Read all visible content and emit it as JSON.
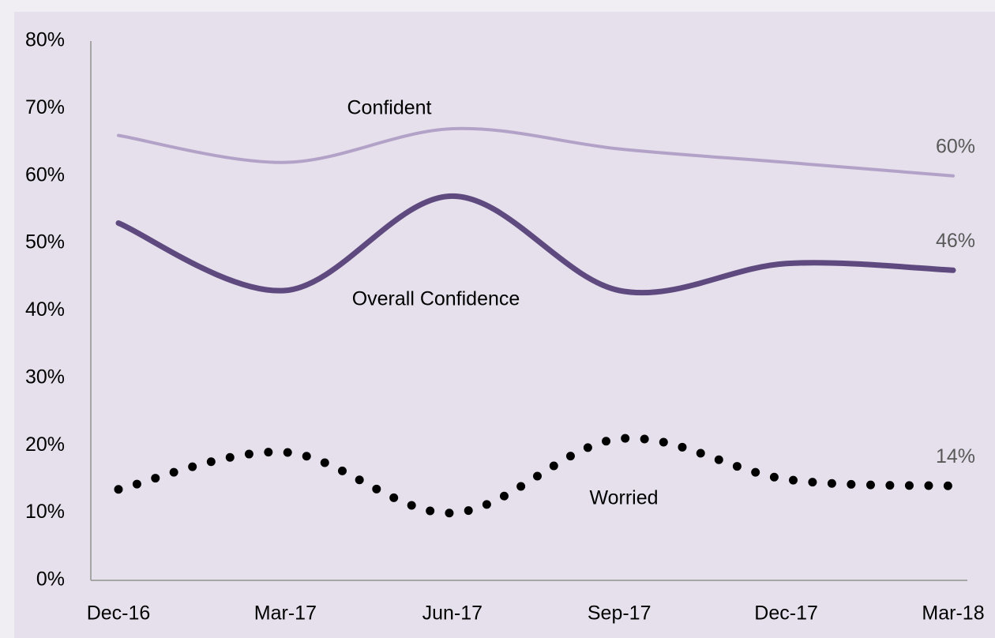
{
  "chart_data": {
    "type": "line",
    "categories": [
      "Dec-16",
      "Mar-17",
      "Jun-17",
      "Sep-17",
      "Dec-17",
      "Mar-18"
    ],
    "series": [
      {
        "name": "Confident",
        "color": "#b3a2c7",
        "style": "solid",
        "values": [
          66,
          62,
          67,
          64,
          62,
          60
        ],
        "value_labels": [
          null,
          null,
          null,
          null,
          null,
          "60%"
        ]
      },
      {
        "name": "Overall Confidence",
        "color": "#5f4a7f",
        "style": "solid",
        "values": [
          53,
          43,
          57,
          43,
          47,
          46
        ],
        "value_labels": [
          null,
          null,
          null,
          null,
          null,
          "46%"
        ]
      },
      {
        "name": "Worried",
        "color": "#000000",
        "style": "dotted",
        "values": [
          13.5,
          19,
          10,
          21,
          15,
          14
        ],
        "value_labels": [
          null,
          null,
          null,
          null,
          null,
          "14%"
        ]
      }
    ],
    "ylim": [
      0,
      80
    ],
    "yticks": [
      {
        "value": 0,
        "label": "0%"
      },
      {
        "value": 10,
        "label": "10%"
      },
      {
        "value": 20,
        "label": "20%"
      },
      {
        "value": 30,
        "label": "30%"
      },
      {
        "value": 40,
        "label": "40%"
      },
      {
        "value": 50,
        "label": "50%"
      },
      {
        "value": 60,
        "label": "60%"
      },
      {
        "value": 70,
        "label": "70%"
      },
      {
        "value": 80,
        "label": "80%"
      }
    ],
    "smooth": true
  }
}
